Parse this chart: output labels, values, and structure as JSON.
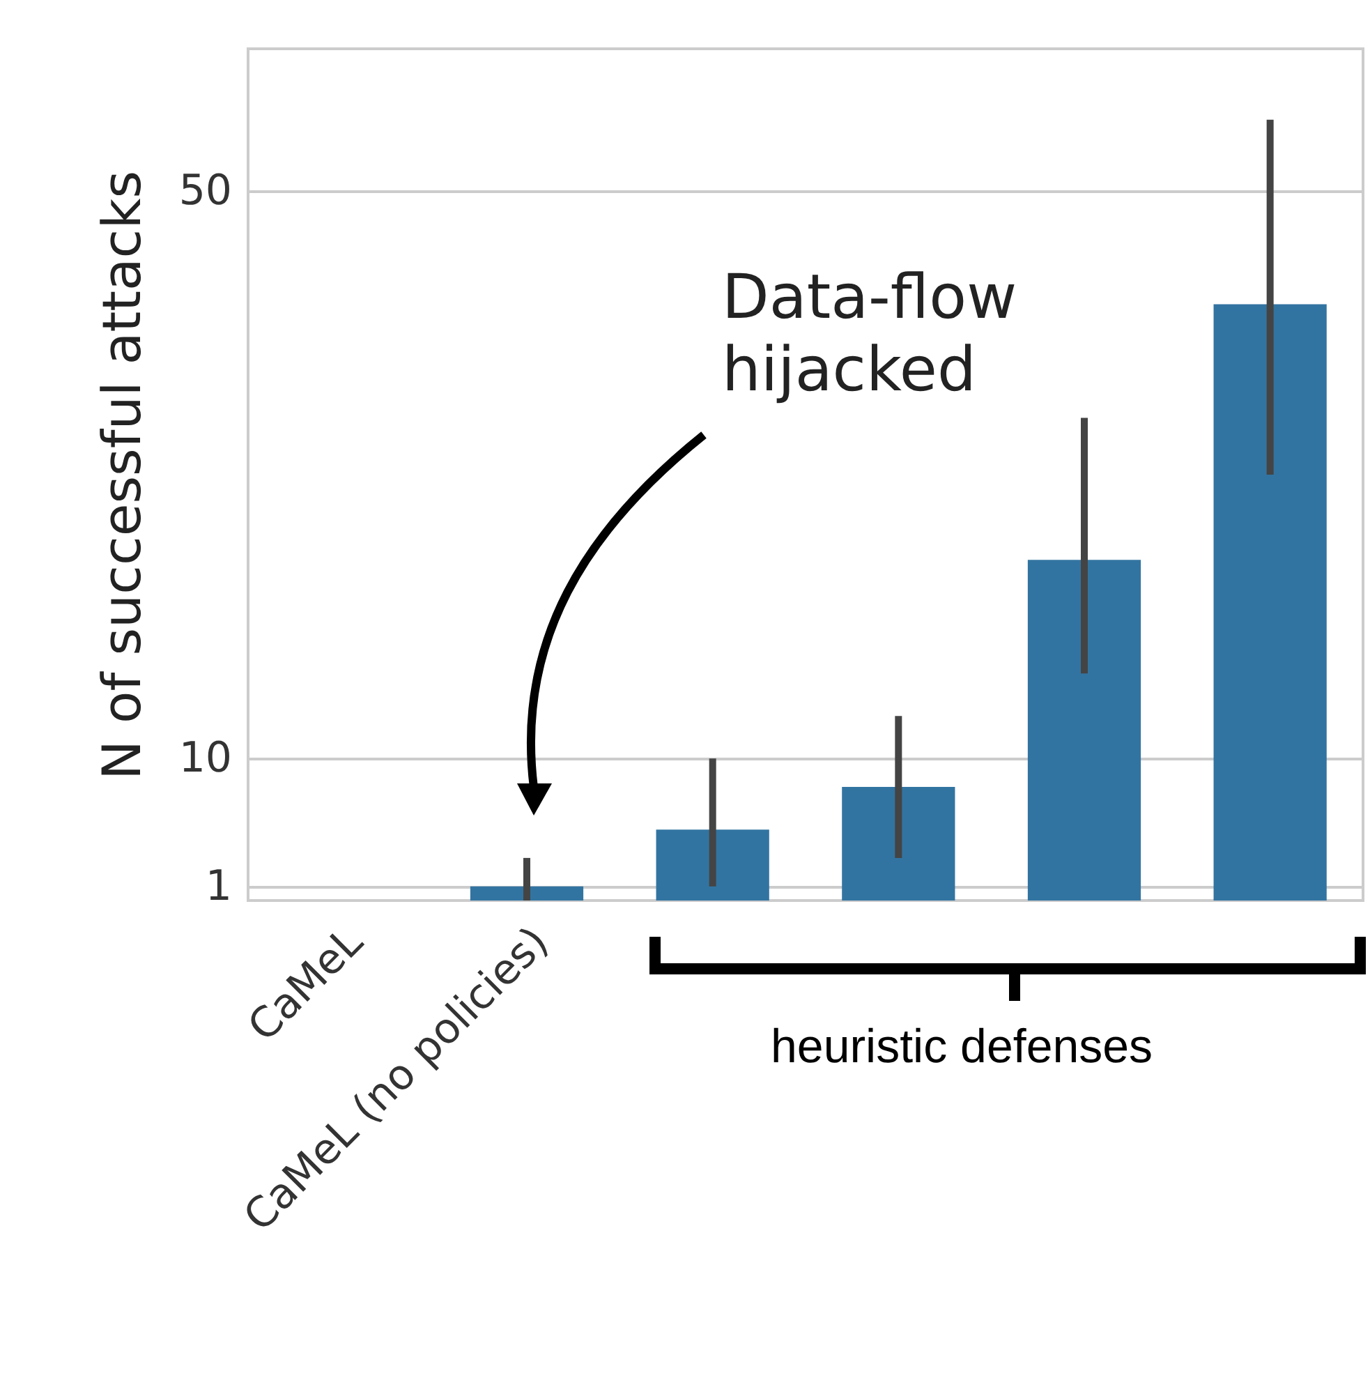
{
  "chart_data": {
    "type": "bar",
    "ylabel": "N of successful attacks",
    "categories": [
      "CaMeL",
      "CaMeL (no policies)",
      null,
      null,
      null,
      null
    ],
    "values": [
      0,
      1,
      5,
      8,
      24,
      42
    ],
    "errors": [
      null,
      [
        0,
        3
      ],
      [
        1,
        10
      ],
      [
        3,
        13
      ],
      [
        16,
        34
      ],
      [
        30,
        55
      ]
    ],
    "color": "#3274a1",
    "ylim": [
      0,
      60
    ],
    "yticks": [
      1,
      10,
      50
    ],
    "grid": "y",
    "annotations": [
      "Data-flow hijacked",
      "heuristic defenses"
    ]
  }
}
